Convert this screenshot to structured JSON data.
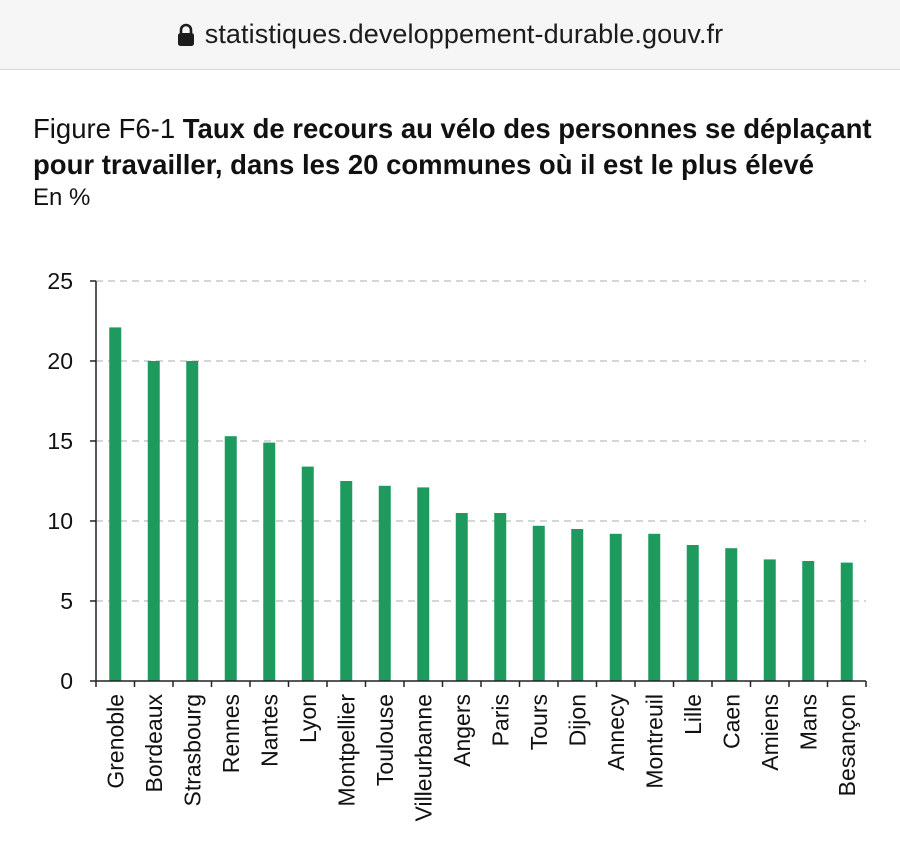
{
  "browser": {
    "url": "statistiques.developpement-durable.gouv.fr",
    "lock_icon": "lock-icon"
  },
  "colors": {
    "bar": "#1f9a5e",
    "axis": "#222222",
    "grid": "#c9c9c9"
  },
  "chart_data": {
    "type": "bar",
    "title_prefix": "Figure F6-1",
    "title": "Taux de recours au vélo des personnes se déplaçant pour travailler, dans les 20 communes où il est le plus élevé",
    "unit": "En %",
    "xlabel": "",
    "ylabel": "",
    "ylim": [
      0,
      25
    ],
    "yticks": [
      0,
      5,
      10,
      15,
      20,
      25
    ],
    "grid": true,
    "categories": [
      "Grenoble",
      "Bordeaux",
      "Strasbourg",
      "Rennes",
      "Nantes",
      "Lyon",
      "Montpellier",
      "Toulouse",
      "Villeurbanne",
      "Angers",
      "Paris",
      "Tours",
      "Dijon",
      "Annecy",
      "Montreuil",
      "Lille",
      "Caen",
      "Amiens",
      "Mans",
      "Besançon"
    ],
    "values": [
      22.1,
      20.0,
      20.0,
      15.3,
      14.9,
      13.4,
      12.5,
      12.2,
      12.1,
      10.5,
      10.5,
      9.7,
      9.5,
      9.2,
      9.2,
      8.5,
      8.3,
      7.6,
      7.5,
      7.4
    ]
  }
}
